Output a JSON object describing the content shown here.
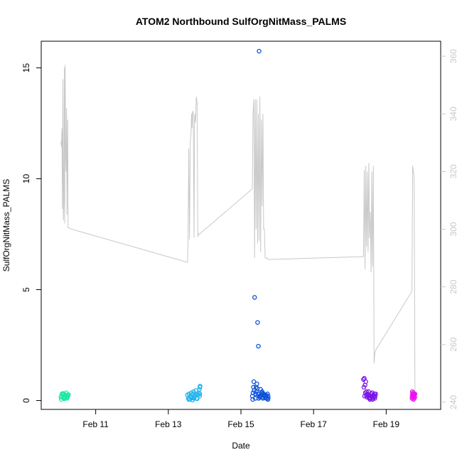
{
  "chart_data": {
    "type": "scatter",
    "title": "ATOM2 Northbound SulfOrgNitMass_PALMS",
    "xlabel": "Date",
    "ylabel": "SulfOrgNitMass_PALMS",
    "x_ticks": [
      "Feb 11",
      "Feb 13",
      "Feb 15",
      "Feb 17",
      "Feb 19"
    ],
    "y_ticks": [
      "0",
      "5",
      "10",
      "15"
    ],
    "y2_ticks": [
      "240",
      "260",
      "280",
      "300",
      "320",
      "340",
      "360"
    ],
    "ylim": [
      -0.4,
      16.2
    ],
    "y2lim": [
      237.5,
      365.2
    ],
    "grid": false,
    "colors": {
      "secondary_line": "#c8c8c8",
      "secondary_axis": "#c8c8c8",
      "groups": [
        "#1de9a8",
        "#1fb4ee",
        "#0b52d8",
        "#7b16e6",
        "#ee10f0"
      ]
    },
    "secondary_series": {
      "axis": "right",
      "x": [
        "2018-02-10T01:00",
        "2018-02-10T01:20",
        "2018-02-10T01:40",
        "2018-02-10T02:00",
        "2018-02-10T02:20",
        "2018-02-10T02:40",
        "2018-02-10T03:00",
        "2018-02-10T03:15",
        "2018-02-10T03:30",
        "2018-02-10T03:50",
        "2018-02-10T04:10",
        "2018-02-10T04:30",
        "2018-02-10T04:45",
        "2018-02-10T05:00",
        "2018-02-10T05:15",
        "2018-02-10T05:30",
        "2018-02-10T05:45",
        "2018-02-10T06:10",
        "2018-02-10T06:30",
        "2018-02-10T07:00",
        "2018-02-13T12:40",
        "2018-02-13T13:00",
        "2018-02-13T13:30",
        "2018-02-13T14:00",
        "2018-02-13T14:30",
        "2018-02-13T15:00",
        "2018-02-13T15:20",
        "2018-02-13T15:40",
        "2018-02-13T16:00",
        "2018-02-13T16:30",
        "2018-02-13T17:00",
        "2018-02-13T17:20",
        "2018-02-13T17:40",
        "2018-02-13T18:00",
        "2018-02-13T18:30",
        "2018-02-13T19:00",
        "2018-02-13T19:30",
        "2018-02-13T20:00",
        "2018-02-13T20:20",
        "2018-02-13T20:40",
        "2018-02-13T21:00",
        "2018-02-15T07:30",
        "2018-02-15T08:00",
        "2018-02-15T08:30",
        "2018-02-15T09:00",
        "2018-02-15T09:30",
        "2018-02-15T10:00",
        "2018-02-15T10:30",
        "2018-02-15T11:00",
        "2018-02-15T11:30",
        "2018-02-15T12:00",
        "2018-02-15T12:30",
        "2018-02-15T13:00",
        "2018-02-15T13:30",
        "2018-02-15T14:00",
        "2018-02-15T14:30",
        "2018-02-15T15:00",
        "2018-02-15T15:30",
        "2018-02-15T16:00",
        "2018-02-15T16:30",
        "2018-02-15T17:00",
        "2018-02-15T17:30",
        "2018-02-15T18:00",
        "2018-02-18T09:00",
        "2018-02-18T09:30",
        "2018-02-18T10:00",
        "2018-02-18T10:30",
        "2018-02-18T11:00",
        "2018-02-18T11:30",
        "2018-02-18T12:00",
        "2018-02-18T12:30",
        "2018-02-18T13:00",
        "2018-02-18T13:30",
        "2018-02-18T14:00",
        "2018-02-18T14:30",
        "2018-02-18T15:00",
        "2018-02-18T15:30",
        "2018-02-18T16:00",
        "2018-02-18T16:30",
        "2018-02-18T17:00",
        "2018-02-19T17:00",
        "2018-02-19T17:30",
        "2018-02-19T18:00",
        "2018-02-19T18:30",
        "2018-02-19T19:00"
      ],
      "y": [
        330.5,
        328.5,
        335.0,
        307.0,
        352.0,
        303.0,
        310.0,
        356.0,
        302.0,
        357.0,
        325.0,
        320.0,
        342.0,
        305.0,
        322.0,
        338.0,
        300.5,
        300.5,
        300.5,
        300.2,
        288.5,
        296.0,
        328.0,
        296.5,
        330.0,
        333.5,
        340.0,
        335.0,
        341.0,
        340.5,
        297.0,
        338.0,
        340.0,
        337.0,
        346.0,
        344.0,
        297.5,
        298.0,
        298.5,
        298.5,
        298.5,
        314.0,
        340.0,
        345.0,
        290.0,
        345.0,
        300.0,
        345.0,
        295.0,
        340.0,
        296.0,
        346.0,
        292.0,
        338.0,
        308.0,
        340.0,
        300.0,
        300.0,
        290.0,
        290.0,
        290.0,
        290.0,
        289.5,
        290.5,
        320.5,
        286.0,
        322.0,
        294.0,
        320.0,
        292.0,
        323.0,
        297.0,
        306.0,
        285.0,
        320.0,
        287.0,
        322.0,
        253.5,
        257.0,
        258.0,
        278.5,
        322.0,
        320.0,
        318.0,
        243.0
      ]
    },
    "groups": [
      {
        "color": "#1de9a8",
        "x": [
          "2018-02-10T01:00",
          "2018-02-10T01:30",
          "2018-02-10T02:00",
          "2018-02-10T02:30",
          "2018-02-10T03:00",
          "2018-02-10T03:30",
          "2018-02-10T04:00",
          "2018-02-10T04:30",
          "2018-02-10T05:00",
          "2018-02-10T05:30",
          "2018-02-10T06:00",
          "2018-02-10T01:15",
          "2018-02-10T02:15",
          "2018-02-10T03:15",
          "2018-02-10T04:15",
          "2018-02-10T05:15",
          "2018-02-10T01:45",
          "2018-02-10T03:45",
          "2018-02-10T05:45",
          "2018-02-10T02:45"
        ],
        "y": [
          0.15,
          0.22,
          0.28,
          0.12,
          0.3,
          0.18,
          0.25,
          0.35,
          0.1,
          0.2,
          0.27,
          0.05,
          0.32,
          0.08,
          0.24,
          0.15,
          0.3,
          0.12,
          0.22,
          0.18
        ]
      },
      {
        "color": "#1fb4ee",
        "x": [
          "2018-02-13T12:40",
          "2018-02-13T13:10",
          "2018-02-13T13:40",
          "2018-02-13T14:10",
          "2018-02-13T14:40",
          "2018-02-13T15:10",
          "2018-02-13T15:40",
          "2018-02-13T16:10",
          "2018-02-13T16:40",
          "2018-02-13T17:10",
          "2018-02-13T17:40",
          "2018-02-13T18:10",
          "2018-02-13T18:40",
          "2018-02-13T19:10",
          "2018-02-13T19:40",
          "2018-02-13T20:10",
          "2018-02-13T20:40",
          "2018-02-13T13:30",
          "2018-02-13T15:00",
          "2018-02-13T17:00",
          "2018-02-13T19:00",
          "2018-02-13T20:30",
          "2018-02-13T20:50",
          "2018-02-13T21:00",
          "2018-02-13T20:45",
          "2018-02-13T16:00"
        ],
        "y": [
          0.25,
          0.1,
          0.3,
          0.05,
          0.2,
          0.35,
          0.12,
          0.28,
          0.4,
          0.15,
          0.22,
          0.45,
          0.1,
          0.3,
          0.25,
          0.35,
          0.2,
          0.05,
          0.15,
          0.1,
          0.08,
          0.5,
          0.6,
          0.65,
          0.3,
          0.02
        ]
      },
      {
        "color": "#0b52d8",
        "x": [
          "2018-02-15T12:00",
          "2018-02-15T11:00",
          "2018-02-15T11:30",
          "2018-02-15T09:00",
          "2018-02-15T07:30",
          "2018-02-15T08:00",
          "2018-02-15T08:30",
          "2018-02-15T09:30",
          "2018-02-15T10:00",
          "2018-02-15T10:30",
          "2018-02-15T11:15",
          "2018-02-15T12:30",
          "2018-02-15T13:00",
          "2018-02-15T13:30",
          "2018-02-15T14:00",
          "2018-02-15T14:30",
          "2018-02-15T15:00",
          "2018-02-15T15:30",
          "2018-02-15T16:00",
          "2018-02-15T16:30",
          "2018-02-15T17:00",
          "2018-02-15T17:30",
          "2018-02-15T18:00",
          "2018-02-15T07:45",
          "2018-02-15T08:45",
          "2018-02-15T09:45",
          "2018-02-15T10:45",
          "2018-02-15T11:45",
          "2018-02-15T12:45",
          "2018-02-15T13:45",
          "2018-02-15T14:45",
          "2018-02-15T15:45",
          "2018-02-15T16:45",
          "2018-02-15T17:45",
          "2018-02-15T08:15",
          "2018-02-15T10:15",
          "2018-02-15T12:15",
          "2018-02-15T14:15",
          "2018-02-15T16:15",
          "2018-02-15T18:00"
        ],
        "y": [
          15.75,
          3.52,
          2.45,
          4.65,
          0.2,
          0.35,
          0.85,
          0.1,
          0.6,
          0.75,
          0.3,
          0.15,
          0.5,
          0.25,
          0.4,
          0.1,
          0.3,
          0.2,
          0.15,
          0.25,
          0.1,
          0.3,
          0.2,
          0.05,
          0.45,
          0.3,
          0.55,
          0.1,
          0.2,
          0.35,
          0.15,
          0.25,
          0.1,
          0.05,
          0.6,
          0.4,
          0.2,
          0.3,
          0.15,
          0.1
        ]
      },
      {
        "color": "#7b16e6",
        "x": [
          "2018-02-18T09:00",
          "2018-02-18T09:30",
          "2018-02-18T10:00",
          "2018-02-18T10:30",
          "2018-02-18T11:00",
          "2018-02-18T11:30",
          "2018-02-18T12:00",
          "2018-02-18T12:30",
          "2018-02-18T13:00",
          "2018-02-18T13:30",
          "2018-02-18T14:00",
          "2018-02-18T14:30",
          "2018-02-18T15:00",
          "2018-02-18T15:30",
          "2018-02-18T16:00",
          "2018-02-18T16:30",
          "2018-02-18T17:00",
          "2018-02-18T09:15",
          "2018-02-18T09:45",
          "2018-02-18T10:15",
          "2018-02-18T11:15",
          "2018-02-18T12:15",
          "2018-02-18T13:15",
          "2018-02-18T14:15",
          "2018-02-18T15:15",
          "2018-02-18T16:15",
          "2018-02-18T16:45",
          "2018-02-18T10:45",
          "2018-02-18T12:45",
          "2018-02-18T14:45"
        ],
        "y": [
          0.95,
          1.0,
          0.7,
          0.85,
          0.4,
          0.3,
          0.2,
          0.25,
          0.15,
          0.1,
          0.3,
          0.2,
          0.05,
          0.25,
          0.15,
          0.1,
          0.3,
          0.6,
          0.2,
          0.35,
          0.15,
          0.4,
          0.05,
          0.2,
          0.1,
          0.3,
          0.2,
          0.25,
          0.1,
          0.35
        ]
      },
      {
        "color": "#ee10f0",
        "x": [
          "2018-02-19T17:00",
          "2018-02-19T17:10",
          "2018-02-19T17:20",
          "2018-02-19T17:30",
          "2018-02-19T17:40",
          "2018-02-19T17:50",
          "2018-02-19T18:00",
          "2018-02-19T18:10",
          "2018-02-19T18:20",
          "2018-02-19T18:30",
          "2018-02-19T18:40",
          "2018-02-19T18:50",
          "2018-02-19T19:00",
          "2018-02-19T17:15",
          "2018-02-19T18:15"
        ],
        "y": [
          0.1,
          0.2,
          0.3,
          0.15,
          0.25,
          0.35,
          0.05,
          0.2,
          0.3,
          0.1,
          0.25,
          0.15,
          0.3,
          0.4,
          0.22
        ]
      }
    ]
  }
}
